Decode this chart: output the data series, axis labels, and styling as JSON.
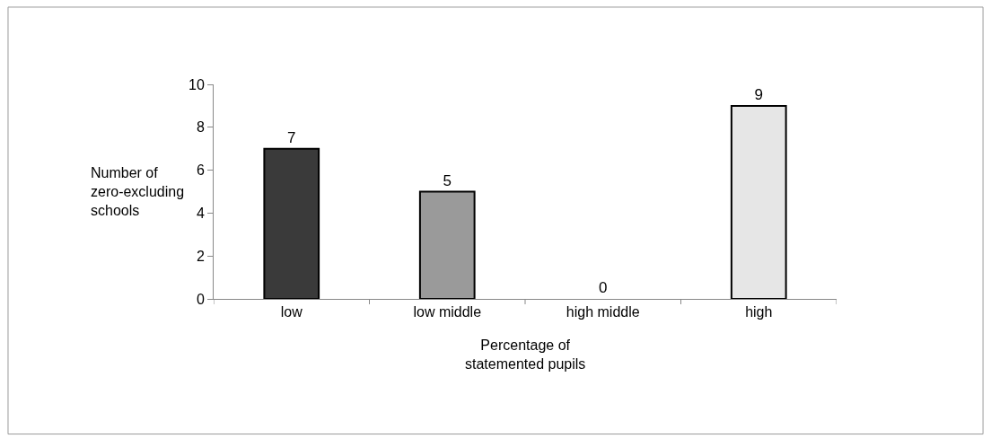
{
  "chart_data": {
    "type": "bar",
    "xlabel": "Percentage of\nstatemented pupils",
    "ylabel": "Number of\nzero-excluding\nschools",
    "categories": [
      "low",
      "low middle",
      "high middle",
      "high"
    ],
    "values": [
      7,
      5,
      0,
      9
    ],
    "colors": [
      "#3a3a3a",
      "#9a9a9a",
      null,
      "#e6e6e6"
    ],
    "ylim": [
      0,
      10
    ],
    "yticks": [
      0,
      2,
      4,
      6,
      8,
      10
    ],
    "legend": false,
    "data_labels": true
  }
}
